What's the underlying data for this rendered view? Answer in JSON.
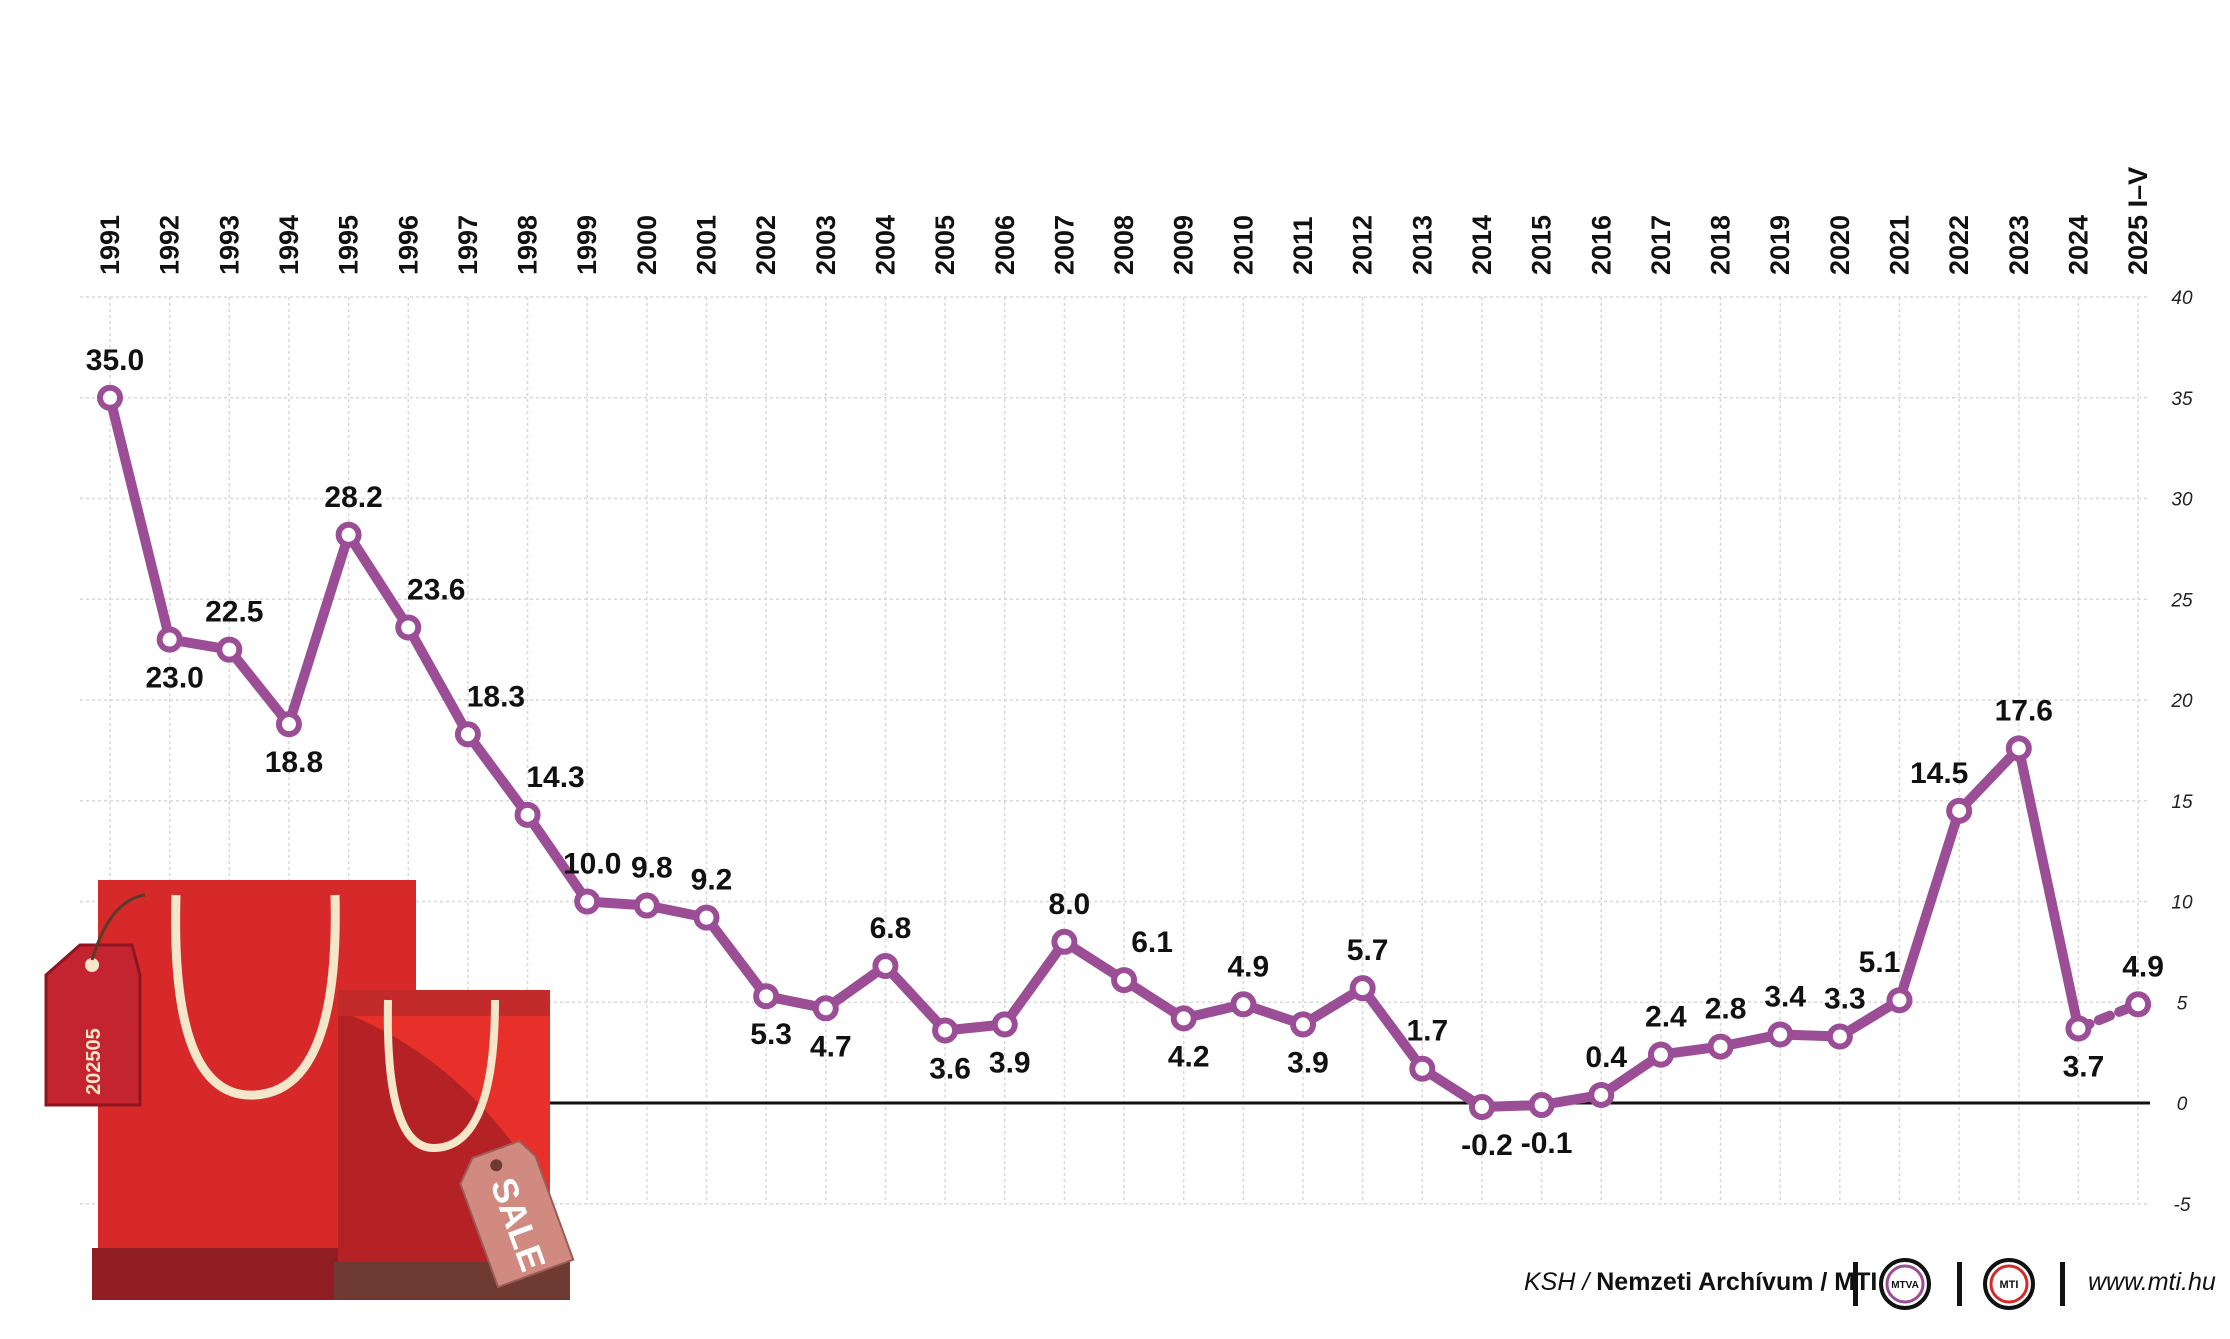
{
  "chart_data": {
    "type": "line",
    "x": [
      "1991",
      "1992",
      "1993",
      "1994",
      "1995",
      "1996",
      "1997",
      "1998",
      "1999",
      "2000",
      "2001",
      "2002",
      "2003",
      "2004",
      "2005",
      "2006",
      "2007",
      "2008",
      "2009",
      "2010",
      "2011",
      "2012",
      "2013",
      "2014",
      "2015",
      "2016",
      "2017",
      "2018",
      "2019",
      "2020",
      "2021",
      "2022",
      "2023",
      "2024",
      "2025 I–V"
    ],
    "values": [
      35.0,
      23.0,
      22.5,
      18.8,
      28.2,
      23.6,
      18.3,
      14.3,
      10.0,
      9.8,
      9.2,
      5.3,
      4.7,
      6.8,
      3.6,
      3.9,
      8.0,
      6.1,
      4.2,
      4.9,
      3.9,
      5.7,
      1.7,
      -0.2,
      -0.1,
      0.4,
      2.4,
      2.8,
      3.4,
      3.3,
      5.1,
      14.5,
      17.6,
      3.7,
      4.9
    ],
    "labels": [
      "35.0",
      "23.0",
      "22.5",
      "18.8",
      "28.2",
      "23.6",
      "18.3",
      "14.3",
      "10.0",
      "9.8",
      "9.2",
      "5.3",
      "4.7",
      "6.8",
      "3.6",
      "3.9",
      "8.0",
      "6.1",
      "4.2",
      "4.9",
      "3.9",
      "5.7",
      "1.7",
      "-0.2",
      "-0.1",
      "0.4",
      "2.4",
      "2.8",
      "3.4",
      "3.3",
      "5.1",
      "14.5",
      "17.6",
      "3.7",
      "4.9"
    ],
    "label_position": [
      "above",
      "below",
      "above",
      "below",
      "above",
      "right",
      "right",
      "right",
      "above",
      "above",
      "above",
      "below",
      "below",
      "above",
      "below",
      "below",
      "above",
      "right",
      "below",
      "above",
      "below",
      "above",
      "above",
      "below",
      "below",
      "above",
      "above",
      "above",
      "above",
      "above",
      "left",
      "left",
      "above",
      "below",
      "above"
    ],
    "y_ticks": [
      "40",
      "35",
      "30",
      "25",
      "20",
      "15",
      "10",
      "5",
      "0",
      "-5"
    ],
    "ylim": [
      -5,
      40
    ],
    "grid": true,
    "series_color": "#9b4d96",
    "title": "",
    "xlabel": "",
    "ylabel": ""
  },
  "decoration": {
    "bag_tag_text": "202505",
    "sale_tag_text": "SALE"
  },
  "footer": {
    "source_prefix": "KSH /",
    "source_main": "Nemzeti Archívum / MTI",
    "logo1": "MTVA",
    "logo2": "MTI",
    "url": "www.mti.hu"
  }
}
